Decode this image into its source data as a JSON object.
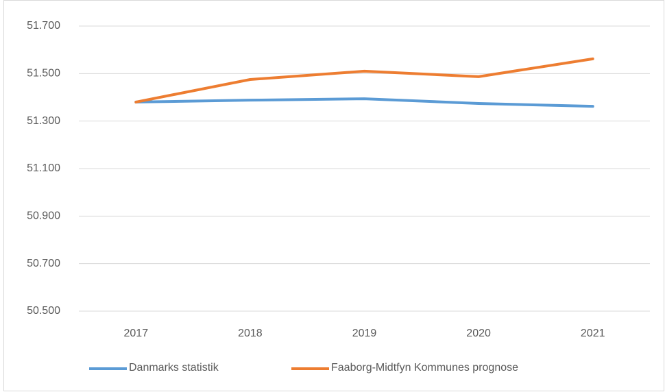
{
  "chart_data": {
    "type": "line",
    "categories": [
      "2017",
      "2018",
      "2019",
      "2020",
      "2021"
    ],
    "series": [
      {
        "name": "Danmarks statistik",
        "color": "#5b9bd5",
        "values": [
          51380,
          51388,
          51394,
          51374,
          51362
        ]
      },
      {
        "name": "Faaborg-Midtfyn Kommunes prognose",
        "color": "#ed7d31",
        "values": [
          51380,
          51475,
          51510,
          51487,
          51562
        ]
      }
    ],
    "ylim": [
      50500,
      51700
    ],
    "yticks": [
      {
        "value": 50500,
        "label": "50.500"
      },
      {
        "value": 50700,
        "label": "50.700"
      },
      {
        "value": 50900,
        "label": "50.900"
      },
      {
        "value": 51100,
        "label": "51.100"
      },
      {
        "value": 51300,
        "label": "51.300"
      },
      {
        "value": 51500,
        "label": "51.500"
      },
      {
        "value": 51700,
        "label": "51.700"
      }
    ],
    "grid": true,
    "legend": "bottom"
  }
}
